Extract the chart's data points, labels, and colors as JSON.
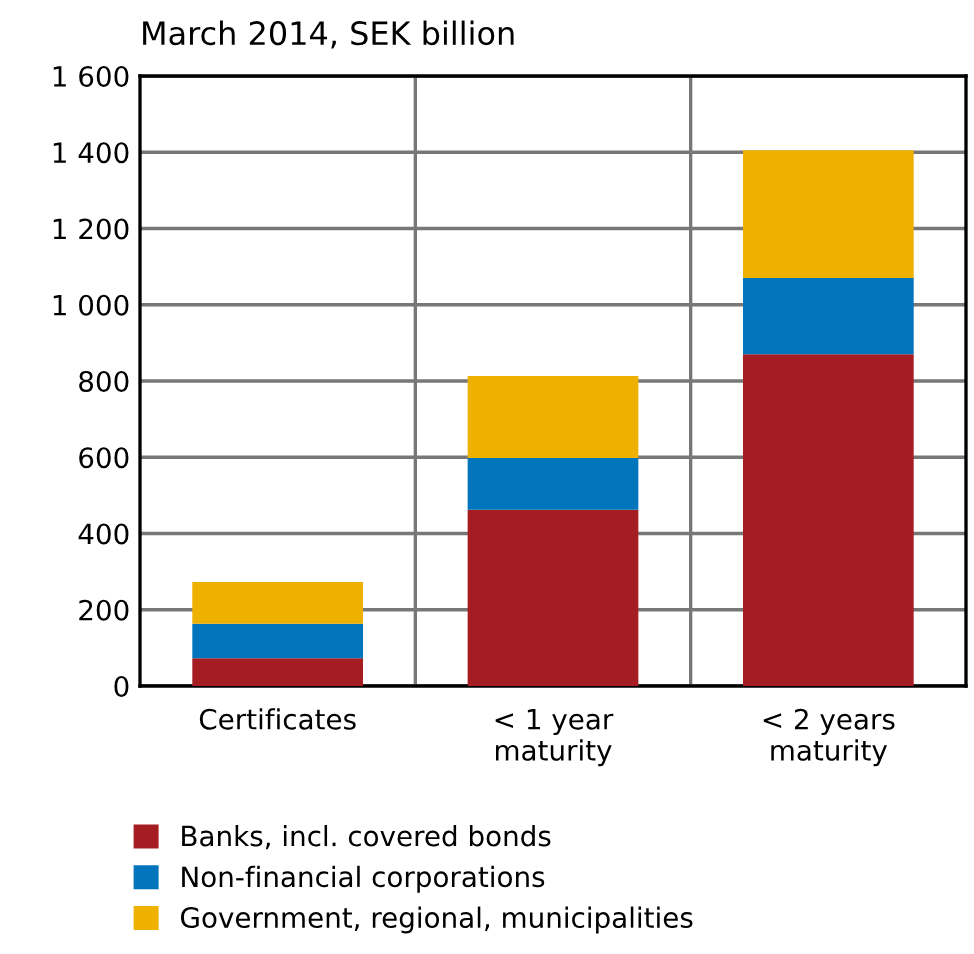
{
  "chart_data": {
    "type": "bar",
    "stacked": true,
    "title": "March 2014, SEK billion",
    "categories": [
      "Certificates",
      "< 1 year\nmaturity",
      "< 2 years\nmaturity"
    ],
    "series": [
      {
        "name": "Banks, incl. covered bonds",
        "color": "#a51d23",
        "values": [
          73,
          462,
          870
        ]
      },
      {
        "name": "Non-financial corporations",
        "color": "#0075bc",
        "values": [
          90,
          136,
          200
        ]
      },
      {
        "name": "Government, regional, municipalities",
        "color": "#efb100",
        "values": [
          110,
          215,
          335
        ]
      }
    ],
    "ylim": [
      0,
      1600
    ],
    "yticks": [
      0,
      200,
      400,
      600,
      800,
      {
        "value": 1000,
        "label": "1 000"
      },
      {
        "value": 1200,
        "label": "1 200"
      },
      {
        "value": 1400,
        "label": "1 400"
      },
      {
        "value": 1600,
        "label": "1 600"
      }
    ],
    "grid": true,
    "legend": "bottom"
  }
}
